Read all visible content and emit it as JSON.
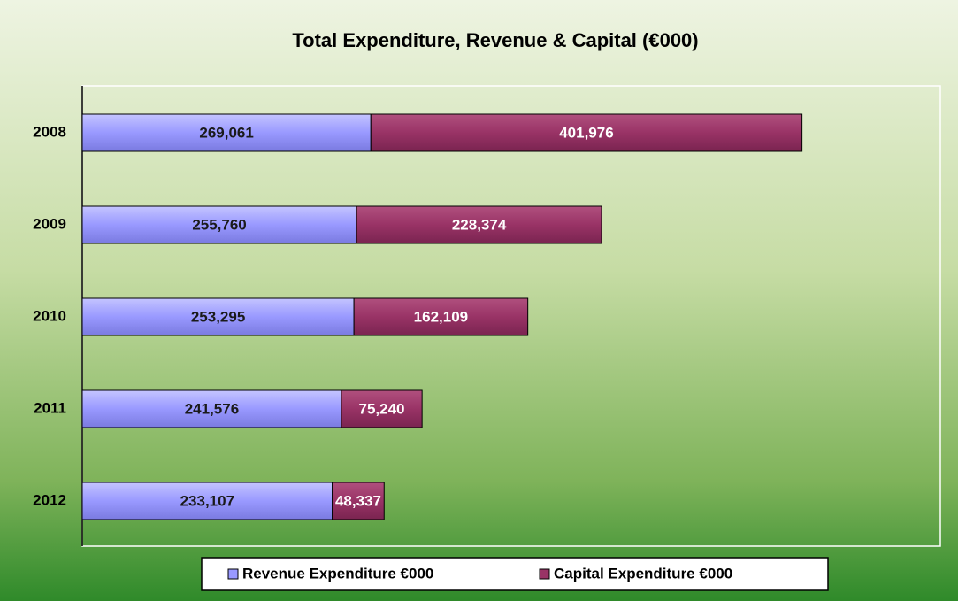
{
  "chart_data": {
    "type": "stacked-bar-horizontal",
    "title": "Total Expenditure, Revenue & Capital (€000)",
    "categories": [
      "2008",
      "2009",
      "2010",
      "2011",
      "2012"
    ],
    "series": [
      {
        "name": "Revenue Expenditure €000",
        "color": "#9999ff",
        "values": [
          269061,
          255760,
          253295,
          241576,
          233107
        ],
        "value_labels": [
          "269,061",
          "255,760",
          "253,295",
          "241,576",
          "233,107"
        ]
      },
      {
        "name": "Capital Expenditure €000",
        "color": "#993366",
        "values": [
          401976,
          228374,
          162109,
          75240,
          48337
        ],
        "value_labels": [
          "401,976",
          "228,374",
          "162,109",
          "75,240",
          "48,337"
        ]
      }
    ],
    "xlim": [
      0,
      800000
    ],
    "legend": "bottom"
  }
}
